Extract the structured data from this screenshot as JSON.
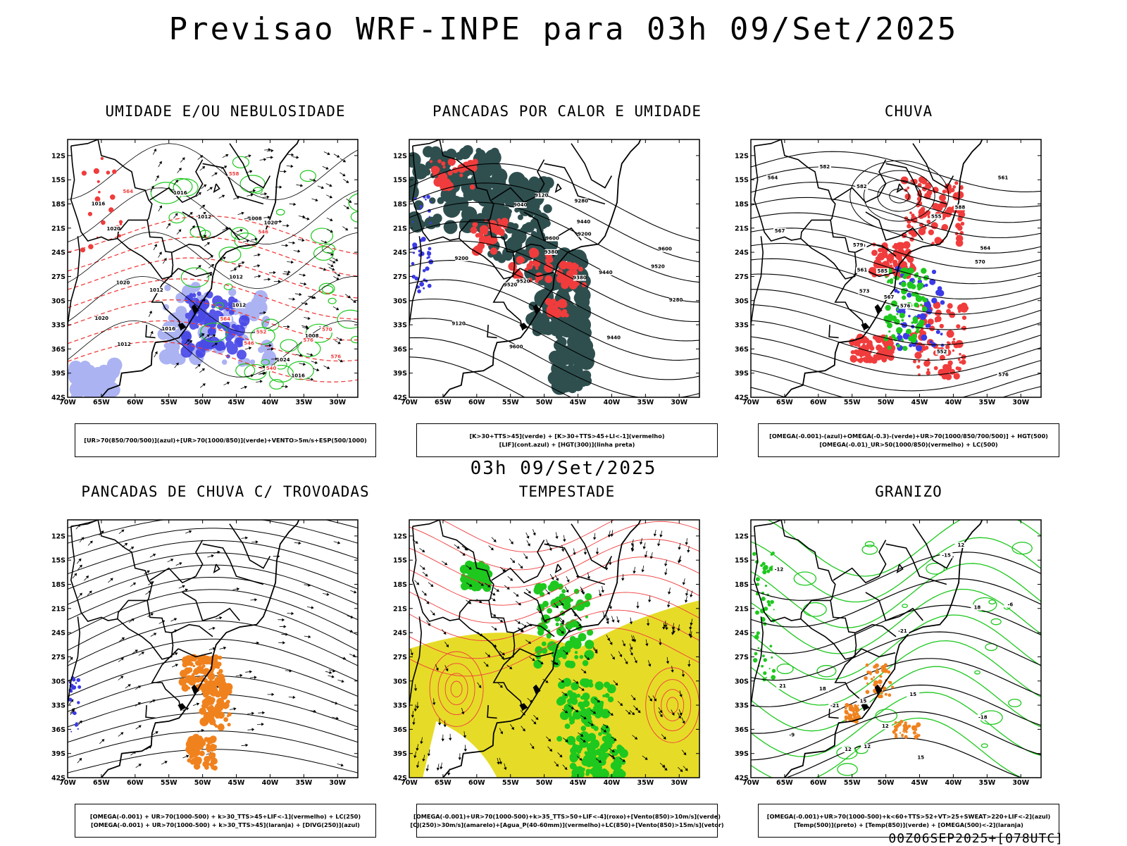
{
  "page": {
    "title": "Previsao WRF-INPE  para 03h 09/Set/2025",
    "mid_title": "03h 09/Set/2025",
    "footer": "00Z06SEP2025+[078UTC]"
  },
  "axes": {
    "lat_labels": [
      "12S",
      "15S",
      "18S",
      "21S",
      "24S",
      "27S",
      "30S",
      "33S",
      "36S",
      "39S",
      "42S"
    ],
    "lon_labels": [
      "70W",
      "65W",
      "60W",
      "55W",
      "50W",
      "45W",
      "40W",
      "35W",
      "30W"
    ]
  },
  "colors": {
    "blue": "#3a3ae6",
    "light_blue": "#9ea6f0",
    "green": "#1ec81e",
    "red": "#f03c3c",
    "dark_teal": "#2f4f4f",
    "orange": "#f0821e",
    "yellow": "#e6dc28",
    "black": "#000000"
  },
  "panels": [
    {
      "title": "UMIDADE E/OU NEBULOSIDADE",
      "legend": [
        "[UR>70(850/700/500)](azul)+[UR>70(1000/850)](verde)+VENTO>5m/s+ESP(500/1000)"
      ],
      "contour_labels": [
        "1016",
        "1020",
        "1012",
        "1016",
        "1008",
        "1020",
        "1012",
        "1012",
        "1020",
        "1012",
        "1008",
        "1024",
        "1016",
        "1016",
        "1012",
        "1020"
      ],
      "red_labels": [
        "576",
        "570",
        "564",
        "558",
        "552",
        "546",
        "540",
        "576",
        "564",
        "546"
      ]
    },
    {
      "title": "PANCADAS POR CALOR E UMIDADE",
      "legend": [
        "[K>30+TTS>45](verde) + [K>30+TTS>45+LI<-1](vermelho)",
        "[LIF](cont.azul) + [HGT(300)](linha preta)"
      ],
      "contour_labels": [
        "9600",
        "9600",
        "9520",
        "9600",
        "9520",
        "9440",
        "9440",
        "9520",
        "9380",
        "9440",
        "9280",
        "9380",
        "9200",
        "9120",
        "9040",
        "9280",
        "9200",
        "9120"
      ]
    },
    {
      "title": "CHUVA",
      "legend": [
        "[OMEGA(-0.001)-(azul)+OMEGA(-0.3)-(verde)+UR>70(1000/850/700/500)] + HGT(500)",
        "[OMEGA(-0.01)_UR>50(1000/850)(vermelho) + LC(500)"
      ],
      "contour_labels": [
        "588",
        "585",
        "582",
        "582",
        "579",
        "576",
        "579",
        "573",
        "576",
        "567",
        "570",
        "564",
        "561",
        "567",
        "555",
        "564",
        "561",
        "552"
      ]
    },
    {
      "title": "PANCADAS DE CHUVA C/ TROVOADAS",
      "legend": [
        "[OMEGA(-0.001) + UR>70(1000-500) + k>30_TTS>45+LIF<-1](vermelho) + LC(250)",
        "[OMEGA(-0.001) + UR>70(1000-500) + k>30_TTS>45](laranja) + [DIVG(250)](azul)"
      ]
    },
    {
      "title": "TEMPESTADE",
      "legend": [
        "[OMEGA(-0.001)+UR>70(1000-500)+k>35_TTS>50+LIF<-4](roxo)+[Vento(850)>10m/s](verde)",
        "[CJ(250)>30m/s](amarelo)+[Agua_P(40-60mm)](vermelho)+LC(850)+[Vento(850)>15m/s](vetor)"
      ]
    },
    {
      "title": "GRANIZO",
      "legend": [
        "[OMEGA(-0.001)+UR>70(1000-500)+k<60+TTS>52+VT>25+SWEAT>220+LIF<-2](azul)",
        "[Temp(500)](preto) + [Temp(850)](verde) + [OMEGA(500)<-2](laranja)"
      ],
      "contour_labels": [
        "-6",
        "12",
        "12",
        "-9",
        "12",
        "-12",
        "15",
        "15",
        "18",
        "-15",
        "12",
        "15",
        "18",
        "-18",
        "-21",
        "-21",
        "21"
      ]
    }
  ]
}
